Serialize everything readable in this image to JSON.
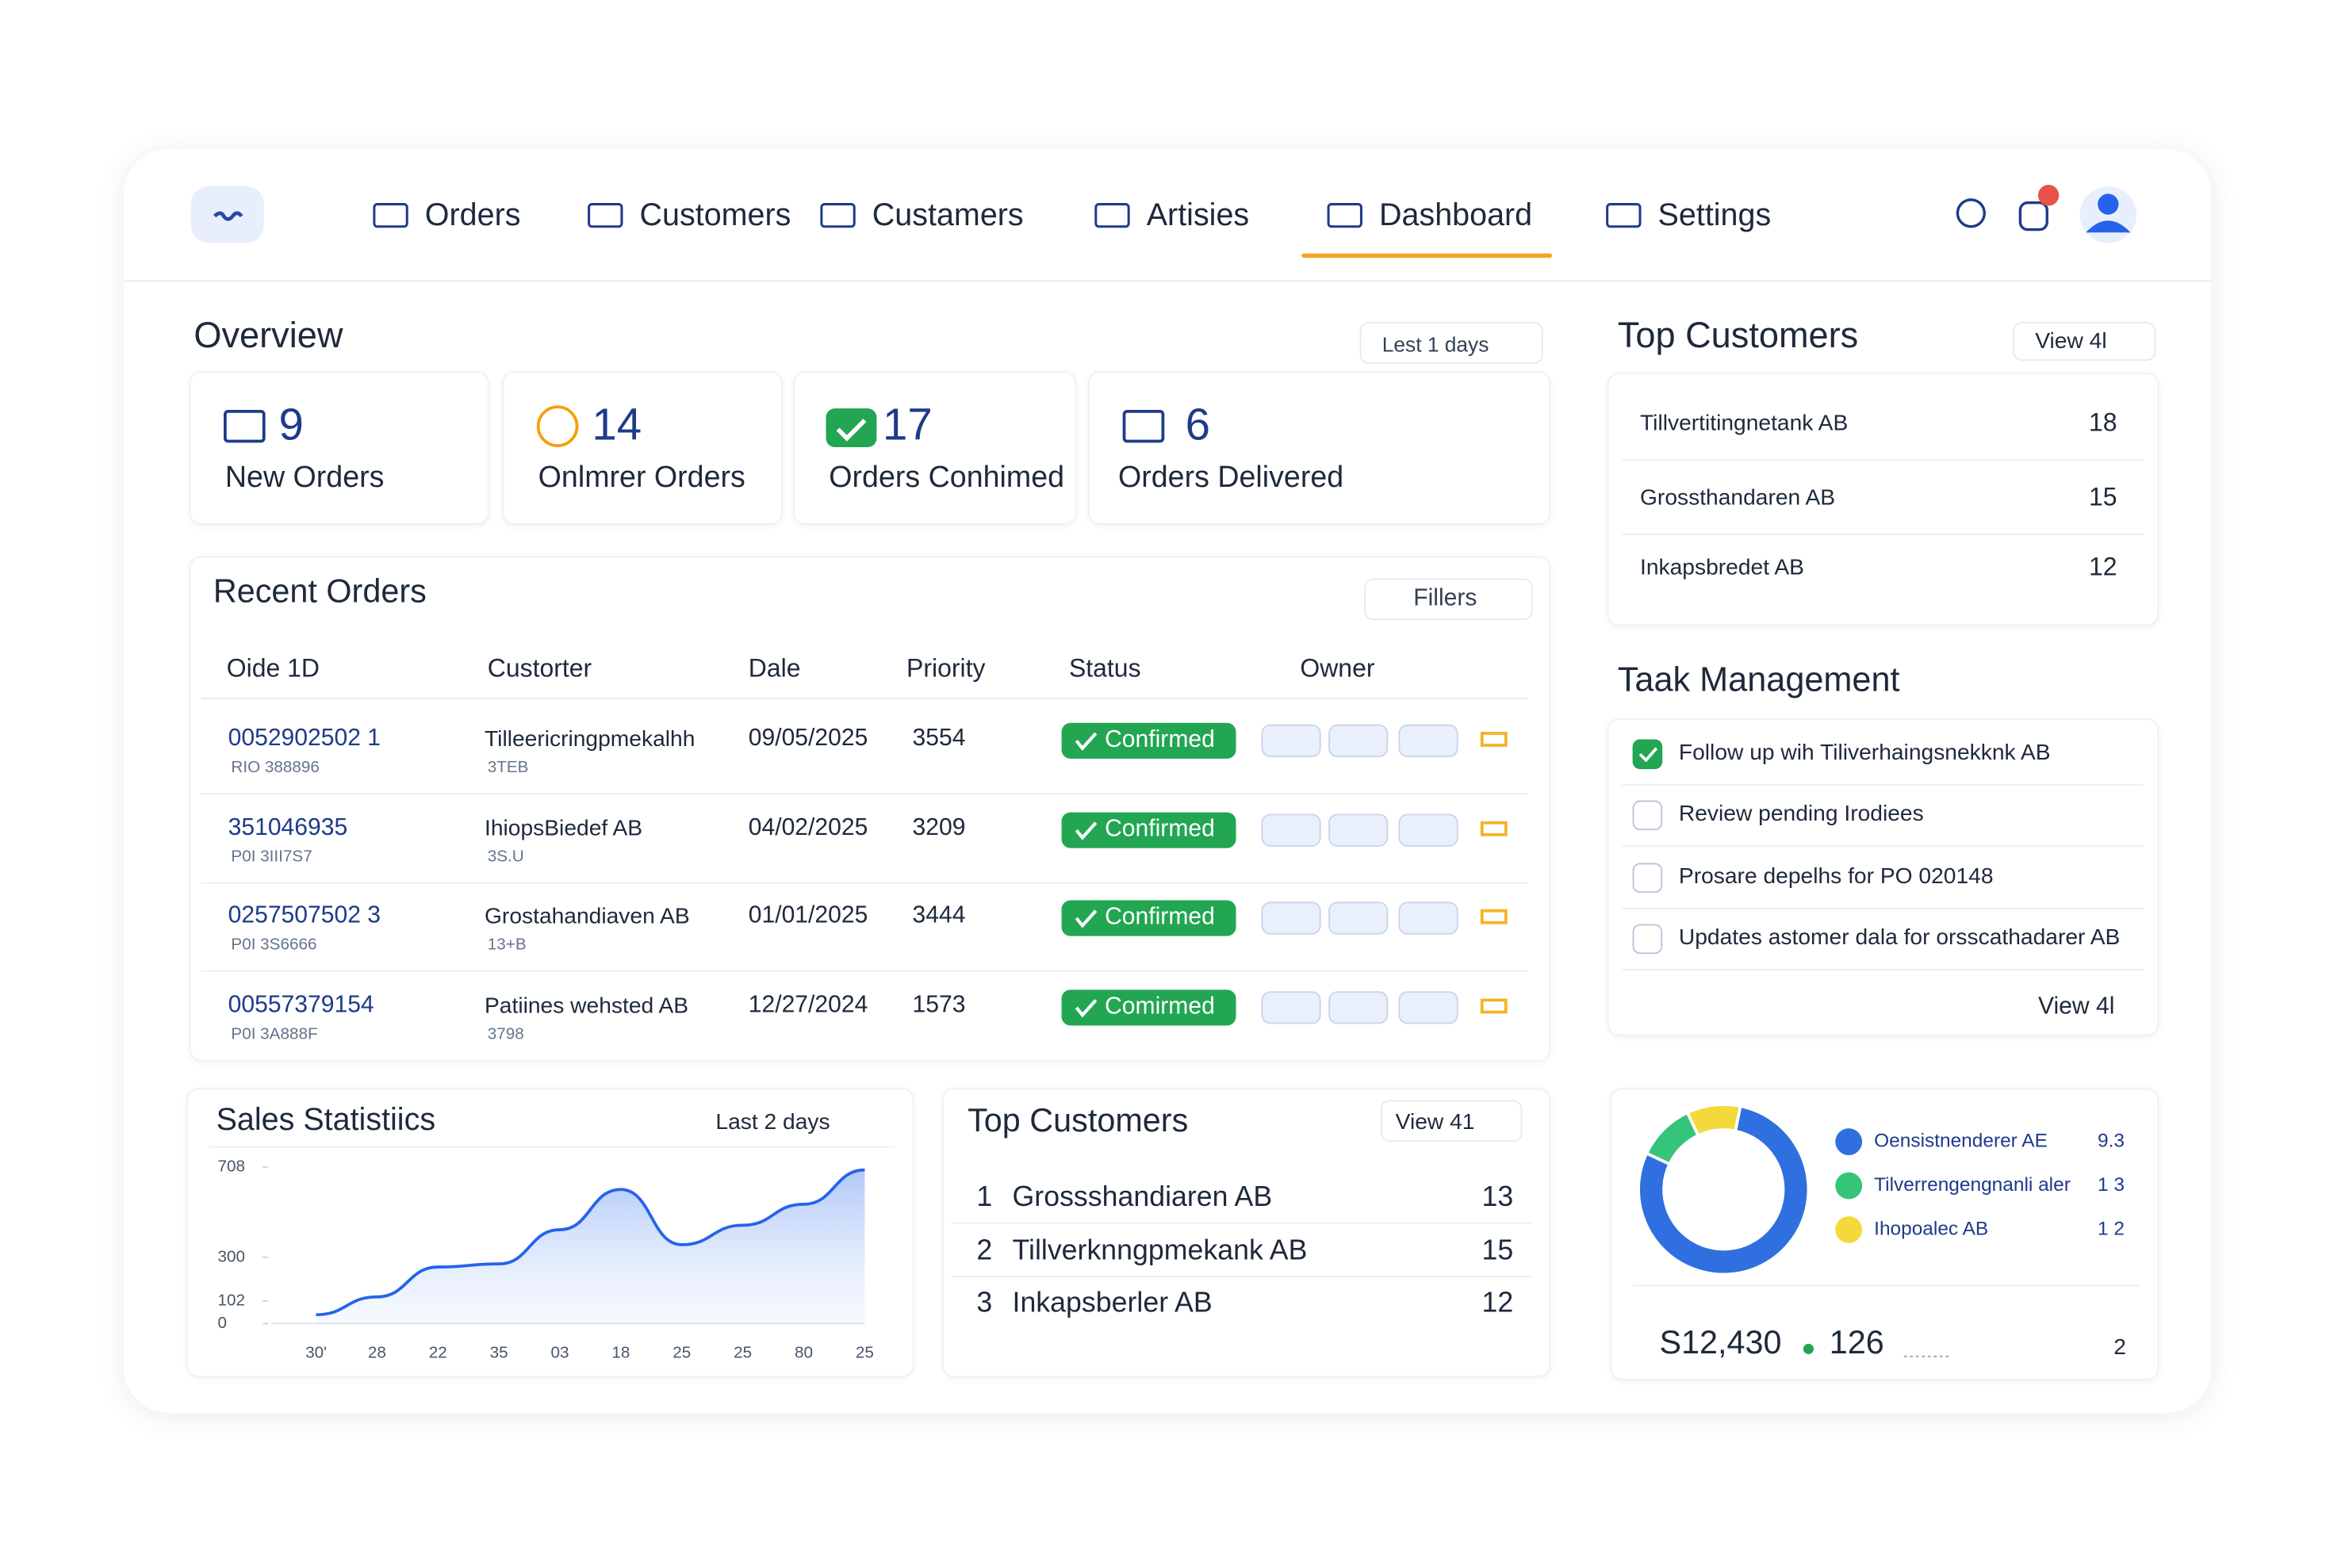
{
  "nav": {
    "items": [
      "Orders",
      "Customers",
      "Custamers",
      "Artisies",
      "Dashboard",
      "Settings"
    ],
    "active": 4
  },
  "overview": {
    "title": "Overview",
    "range": "Lest 1 days",
    "cards": [
      {
        "value": "9",
        "label": "New Orders"
      },
      {
        "value": "14",
        "label": "Onlmrer Orders"
      },
      {
        "value": "17",
        "label": "Orders Conhimed"
      },
      {
        "value": "6",
        "label": "Orders Delivered"
      }
    ]
  },
  "recent_orders": {
    "title": "Recent Orders",
    "filter": "Fillers",
    "columns": [
      "Oide 1D",
      "Custorter",
      "Dale",
      "Priority",
      "Status",
      "Owner"
    ],
    "rows": [
      {
        "id": "0052902502  1",
        "id_sub": "RIO 388896",
        "customer": "Tilleericringpmekalhh",
        "customer_sub": "3TEB",
        "date": "09/05/2025",
        "priority": "3554",
        "status": "Confirmed"
      },
      {
        "id": "351046935",
        "id_sub": "P0I 3III7S7",
        "customer": "IhiopsBiedef AB",
        "customer_sub": "3S.U",
        "date": "04/02/2025",
        "priority": "3209",
        "status": "Confirmed"
      },
      {
        "id": "0257507502 3",
        "id_sub": "P0I 3S6666",
        "customer": "Grostahandiaven AB",
        "customer_sub": "13+B",
        "date": "01/01/2025",
        "priority": "3444",
        "status": "Confirmed"
      },
      {
        "id": "00557379154",
        "id_sub": "P0I 3A888F",
        "customer": "Patiines wehsted AB",
        "customer_sub": "3798",
        "date": "12/27/2024",
        "priority": "1573",
        "status": "Comirmed"
      }
    ]
  },
  "chart_data": [
    {
      "type": "line",
      "title": "Sales Statistiics",
      "range": "Last 2 days",
      "categories": [
        "30'",
        "28",
        "22",
        "35",
        "03",
        "18",
        "25",
        "25",
        "80",
        "25"
      ],
      "values": [
        40,
        121,
        256,
        270,
        425,
        607,
        357,
        445,
        540,
        695
      ],
      "color": "#2563eb",
      "ylim": [
        0,
        708
      ],
      "yticks": [
        0,
        102,
        300,
        708
      ],
      "grid": false
    },
    {
      "type": "pie",
      "donut": true,
      "categories": [
        "Oensistnenderer AE",
        "Tilverrengengnanli aler",
        "Ihopoalec AB"
      ],
      "values": [
        9.3,
        1.3,
        1.2
      ],
      "value_labels": [
        "9.3",
        "1 3",
        "1 2"
      ],
      "colors": [
        "#2f6fe0",
        "#34c47a",
        "#f4d93b"
      ]
    }
  ],
  "top_customers_side": {
    "title": "Top Customers",
    "link": "View 4l",
    "rows": [
      {
        "name": "Tillvertitingnetank AB",
        "value": "18"
      },
      {
        "name": "Grossthandaren AB",
        "value": "15"
      },
      {
        "name": "Inkapsbredet AB",
        "value": "12"
      }
    ]
  },
  "task_management": {
    "title": "Taak Management",
    "link": "View 4l",
    "tasks": [
      {
        "text": "Follow up wih Tiliverhaingsnekknk AB",
        "done": true
      },
      {
        "text": "Review pending Irodiees",
        "done": false
      },
      {
        "text": "Prosare depelhs for PO 020148",
        "done": false
      },
      {
        "text": "Updates astomer dala for orsscathadarer AB",
        "done": false
      }
    ]
  },
  "top_customers_mid": {
    "title": "Top Customers",
    "link": "View 41",
    "rows": [
      {
        "rank": "1",
        "name": "Grossshandiaren AB",
        "value": "13"
      },
      {
        "rank": "2",
        "name": "Tillverknngpmekank AB",
        "value": "15"
      },
      {
        "rank": "3",
        "name": "Inkapsberler AB",
        "value": "12"
      }
    ]
  },
  "summary": {
    "revenue": "S12,430",
    "count": "126",
    "extra": "2"
  }
}
